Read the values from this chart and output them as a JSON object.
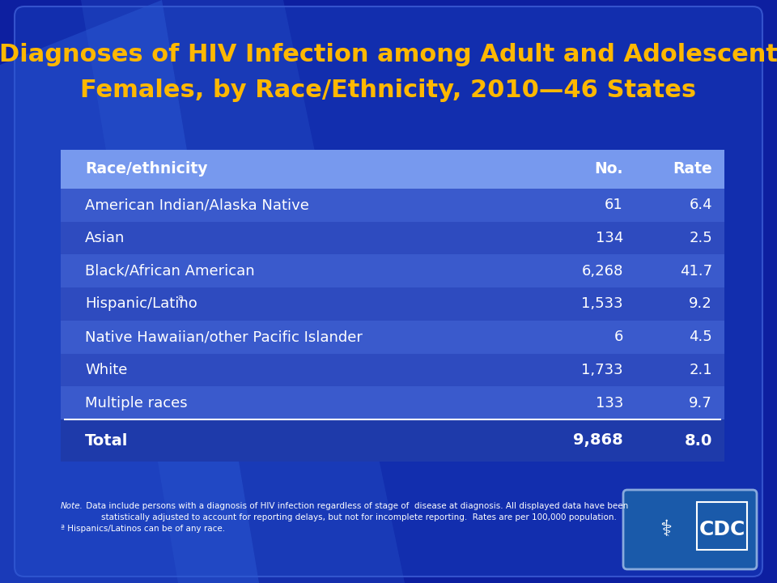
{
  "title_line1": "Diagnoses of HIV Infection among Adult and Adolescent",
  "title_line2": "Females, by Race/Ethnicity, 2010—46 States",
  "title_color": "#FFB800",
  "bg_dark": "#0a1f8f",
  "bg_panel": "#1a3fbb",
  "overlay_color": "#2244cc",
  "overlay_alpha": 0.35,
  "header_bg": "#7799ee",
  "header_text_color": "#ffffff",
  "row_text_color": "#ffffff",
  "row_even_color": "#3355cc",
  "row_odd_color": "#2a48bb",
  "total_bg": "#223399",
  "separator_color": "#ffffff",
  "col_headers": [
    "Race/ethnicity",
    "No.",
    "Rate"
  ],
  "rows": [
    {
      "label": "American Indian/Alaska Native",
      "no": "61",
      "rate": "6.4",
      "superscript": ""
    },
    {
      "label": "Asian",
      "no": "134",
      "rate": "2.5",
      "superscript": ""
    },
    {
      "label": "Black/African American",
      "no": "6,268",
      "rate": "41.7",
      "superscript": ""
    },
    {
      "label": "Hispanic/Latino",
      "no": "1,533",
      "rate": "9.2",
      "superscript": "a"
    },
    {
      "label": "Native Hawaiian/other Pacific Islander",
      "no": "6",
      "rate": "4.5",
      "superscript": ""
    },
    {
      "label": "White",
      "no": "1,733",
      "rate": "2.1",
      "superscript": ""
    },
    {
      "label": "Multiple races",
      "no": "133",
      "rate": "9.7",
      "superscript": ""
    }
  ],
  "total_label": "Total",
  "total_no": "9,868",
  "total_rate": "8.0",
  "note_italic": "Note.",
  "note_rest1": " Data include persons with a diagnosis of HIV infection regardless of stage of  disease at diagnosis. All displayed data have been",
  "note_line2": "statistically adjusted to account for reporting delays, but not for incomplete reporting.  Rates are per 100,000 population.",
  "note_line3": "ª Hispanics/Latinos can be of any race.",
  "note_color": "#ffffff",
  "cdc_box_color": "#1a5aaa",
  "cdc_text_color": "#ffffff"
}
